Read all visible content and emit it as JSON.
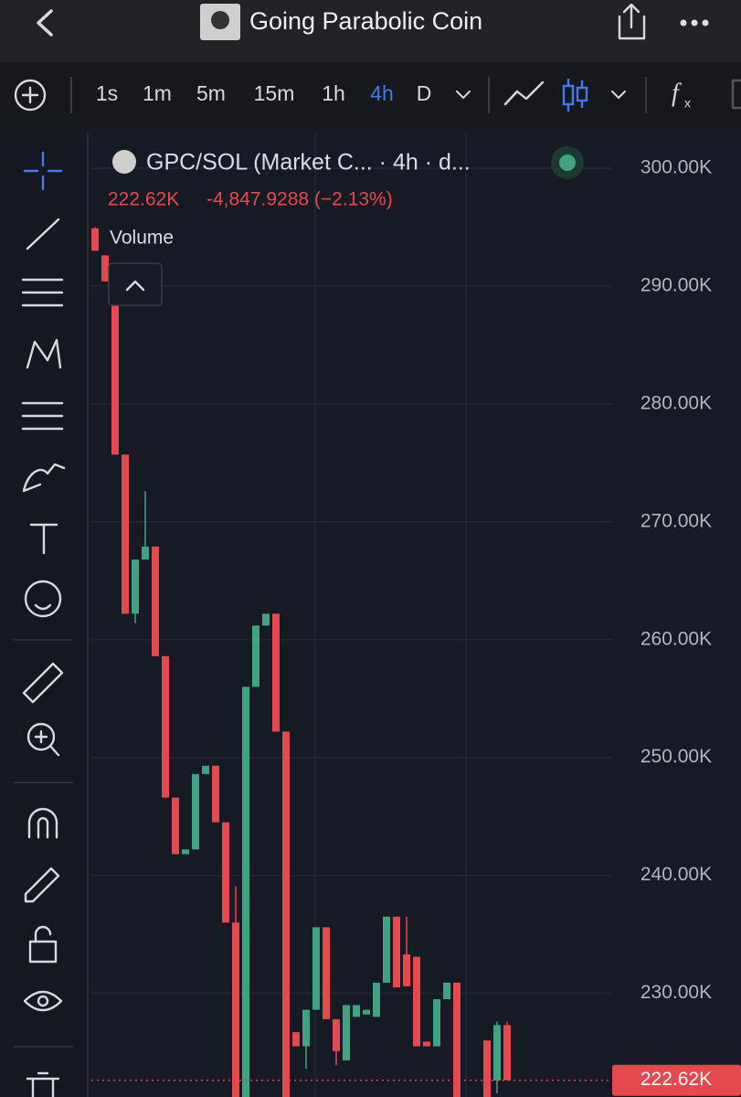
{
  "header": {
    "title": "Going Parabolic Coin"
  },
  "toolbar": {
    "intervals": [
      "1s",
      "1m",
      "5m",
      "15m",
      "1h",
      "4h",
      "D"
    ],
    "active_interval": 5
  },
  "legend": {
    "symbol": "GPC/SOL (Market C... · 4h · d...",
    "price": "222.62K",
    "change": "-4,847.9288 (−2.13%)",
    "study": "Volume"
  },
  "chart_data": {
    "type": "candlestick",
    "up_color": "#3fa282",
    "down_color": "#e5484d",
    "open": [
      294.9,
      292.6,
      291.4,
      275.7,
      262.2,
      266.8,
      267.9,
      258.6,
      246.6,
      241.8,
      242.2,
      248.6,
      249.3,
      244.5,
      236.0,
      220,
      256.0,
      261.2,
      262.2,
      252.2,
      226.7,
      225.5,
      228.6,
      235.6,
      227.8,
      224.3,
      228.0,
      228.2,
      228.0,
      230.9,
      236.5,
      233.3,
      233.1,
      225.9,
      225.5,
      229.5,
      230.9,
      null,
      null,
      226.0,
      222.6,
      227.3
    ],
    "high": [
      295,
      292.6,
      291.4,
      275.7,
      266.8,
      272.6,
      267.9,
      258.6,
      246.6,
      242.2,
      248.6,
      249.3,
      249.3,
      244.5,
      239.1,
      256.0,
      261.2,
      262.2,
      262.2,
      252.2,
      226.7,
      228.6,
      235.6,
      235.6,
      227.8,
      229.0,
      229.0,
      228.6,
      230.9,
      236.5,
      236.5,
      236.5,
      233.1,
      225.9,
      229.5,
      230.9,
      230.9,
      null,
      null,
      226.0,
      227.6,
      227.6
    ],
    "low": [
      293.0,
      290.4,
      275.7,
      262.2,
      261.4,
      266.8,
      258.6,
      246.6,
      241.8,
      241.8,
      242.2,
      248.6,
      244.5,
      236.0,
      220,
      220,
      256.0,
      261.2,
      252.2,
      220,
      225.5,
      223.6,
      228.6,
      227.8,
      223.9,
      224.3,
      228.0,
      228.2,
      228.0,
      230.9,
      230.5,
      230.6,
      225.5,
      225.5,
      225.5,
      229.5,
      220,
      null,
      null,
      220,
      221.5,
      222.62
    ],
    "close": [
      293.0,
      290.4,
      275.7,
      262.2,
      266.8,
      267.9,
      258.6,
      246.6,
      241.8,
      242.2,
      248.6,
      249.3,
      244.5,
      236.0,
      220,
      256.0,
      261.2,
      262.2,
      252.2,
      220,
      225.5,
      228.6,
      235.6,
      227.8,
      225.1,
      229.0,
      229.0,
      228.6,
      230.9,
      236.5,
      230.5,
      230.6,
      225.5,
      225.5,
      229.5,
      230.9,
      220,
      null,
      null,
      220,
      227.3,
      222.62
    ],
    "ylim": [
      221.2,
      301
    ],
    "yticks": [
      {
        "value": 300,
        "label": "300.00K"
      },
      {
        "value": 290,
        "label": "290.00K"
      },
      {
        "value": 280,
        "label": "280.00K"
      },
      {
        "value": 270,
        "label": "270.00K"
      },
      {
        "value": 260,
        "label": "260.00K"
      },
      {
        "value": 250,
        "label": "250.00K"
      },
      {
        "value": 240,
        "label": "240.00K"
      },
      {
        "value": 230,
        "label": "230.00K"
      }
    ],
    "last_price": 222.62,
    "last_price_label": "222.62K",
    "grid": true
  }
}
